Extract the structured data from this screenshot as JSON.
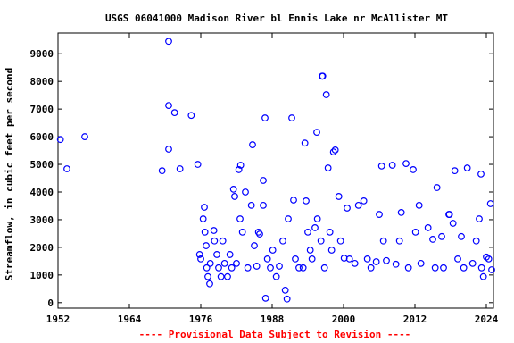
{
  "chart_data": {
    "type": "scatter",
    "title": "USGS 06041000 Madison River bl Ennis Lake nr McAllister MT",
    "y_label": "Streamflow, in cubic feet per second",
    "footer": "---- Provisional Data Subject to Revision ----",
    "color": "#0000ff",
    "footer_color": "#ff0000",
    "xlim": [
      1952,
      2025.2
    ],
    "ylim": [
      -200,
      9750
    ],
    "xticks": [
      1952,
      1964,
      1976,
      1988,
      2000,
      2012,
      2024
    ],
    "yticks": [
      0,
      1000,
      2000,
      3000,
      4000,
      5000,
      6000,
      7000,
      8000,
      9000
    ],
    "x": [
      1952.4,
      1953.5,
      1956.5,
      1969.5,
      1970.6,
      1970.6,
      1970.6,
      1971.6,
      1972.5,
      1974.4,
      1975.5,
      1975.8,
      1976.0,
      1976.4,
      1976.6,
      1976.7,
      1976.9,
      1977.0,
      1977.2,
      1977.5,
      1977.6,
      1978.2,
      1978.3,
      1978.7,
      1979.0,
      1979.4,
      1979.7,
      1980.0,
      1980.5,
      1980.9,
      1981.2,
      1981.5,
      1981.7,
      1982.0,
      1982.4,
      1982.6,
      1982.7,
      1983.0,
      1983.5,
      1983.9,
      1984.5,
      1984.7,
      1985.0,
      1985.4,
      1985.7,
      1985.9,
      1986.5,
      1986.5,
      1986.8,
      1986.9,
      1987.2,
      1987.7,
      1988.1,
      1988.7,
      1989.2,
      1989.8,
      1990.2,
      1990.5,
      1990.7,
      1991.3,
      1991.6,
      1991.9,
      1992.5,
      1993.2,
      1993.5,
      1993.7,
      1994.0,
      1994.4,
      1994.7,
      1995.2,
      1995.5,
      1995.6,
      1996.2,
      1996.4,
      1996.5,
      1996.8,
      1997.1,
      1997.4,
      1997.7,
      1998.0,
      1998.3,
      1998.6,
      1999.2,
      1999.5,
      2000.1,
      2000.6,
      2001.0,
      2001.9,
      2002.5,
      2003.4,
      2004.0,
      2004.6,
      2005.5,
      2006.0,
      2006.4,
      2006.7,
      2007.2,
      2008.2,
      2008.8,
      2009.4,
      2009.7,
      2010.5,
      2010.9,
      2011.7,
      2012.1,
      2012.7,
      2013.0,
      2014.2,
      2015.0,
      2015.4,
      2015.7,
      2016.5,
      2016.8,
      2017.7,
      2017.8,
      2018.4,
      2018.7,
      2019.2,
      2019.8,
      2020.2,
      2020.8,
      2021.7,
      2022.3,
      2022.8,
      2023.1,
      2023.2,
      2023.5,
      2024.0,
      2024.4,
      2024.7,
      2024.9
    ],
    "values": [
      5900,
      4840,
      6000,
      4770,
      9450,
      7130,
      5550,
      6870,
      4840,
      6770,
      5000,
      1740,
      1580,
      3030,
      3450,
      2550,
      2060,
      1260,
      940,
      680,
      1420,
      2610,
      2230,
      1740,
      1260,
      940,
      2230,
      1420,
      940,
      1740,
      1260,
      4100,
      3840,
      1420,
      4810,
      3030,
      4970,
      2550,
      4000,
      1260,
      3520,
      5710,
      2060,
      1320,
      2550,
      2480,
      4420,
      3520,
      6680,
      160,
      1580,
      1260,
      1900,
      940,
      1320,
      2230,
      450,
      130,
      3030,
      6680,
      3710,
      1580,
      1260,
      1260,
      5770,
      3680,
      2550,
      1900,
      1580,
      2710,
      6160,
      3030,
      2230,
      8190,
      8190,
      1260,
      7520,
      4870,
      2550,
      1900,
      5450,
      5520,
      3840,
      2230,
      1610,
      3420,
      1580,
      1420,
      3520,
      3680,
      1580,
      1260,
      1480,
      3190,
      4940,
      2230,
      1520,
      4970,
      1390,
      2230,
      3260,
      5030,
      1260,
      4810,
      2550,
      3520,
      1420,
      2710,
      2290,
      1260,
      4160,
      2390,
      1260,
      3190,
      3190,
      2870,
      4770,
      1580,
      2390,
      1260,
      4870,
      1420,
      2230,
      3030,
      4650,
      1260,
      940,
      1650,
      1580,
      3580,
      1190
    ]
  }
}
